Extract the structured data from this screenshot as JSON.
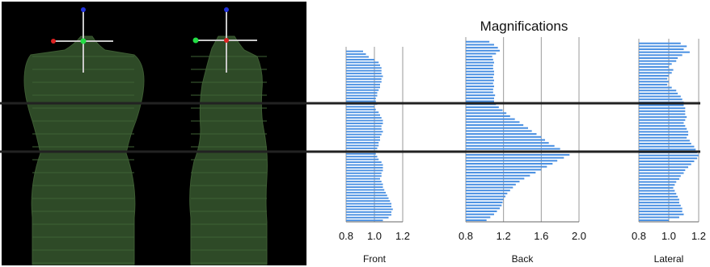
{
  "figure_title": "Magnifications",
  "chart_data": [
    {
      "type": "bar",
      "orientation": "horizontal",
      "xlabel": "Front",
      "xlim": [
        0.8,
        1.2
      ],
      "xticks": [
        0.8,
        1.0,
        1.2
      ],
      "grid": true,
      "series_color": "#4a90e2",
      "values": [
        0.92,
        0.94,
        0.96,
        1.0,
        1.03,
        1.04,
        1.05,
        1.05,
        1.05,
        1.06,
        1.05,
        1.05,
        1.04,
        1.04,
        1.03,
        1.02,
        1.02,
        1.01,
        1.01,
        1.02,
        1.0,
        1.01,
        1.03,
        1.04,
        1.05,
        1.06,
        1.06,
        1.05,
        1.05,
        1.06,
        1.05,
        1.04,
        1.04,
        1.03,
        1.03,
        1.02,
        1.02,
        1.01,
        1.02,
        1.03,
        1.05,
        1.06,
        1.06,
        1.06,
        1.05,
        1.05,
        1.04,
        1.05,
        1.06,
        1.06,
        1.07,
        1.08,
        1.09,
        1.1,
        1.11,
        1.12,
        1.12,
        1.13,
        1.12,
        1.12,
        1.1,
        1.06
      ]
    },
    {
      "type": "bar",
      "orientation": "horizontal",
      "xlabel": "Back",
      "xlim": [
        0.8,
        2.0
      ],
      "xticks": [
        0.8,
        1.2,
        1.6,
        2.0
      ],
      "grid": true,
      "series_color": "#4a90e2",
      "values": [
        1.05,
        1.1,
        1.14,
        1.16,
        1.12,
        1.08,
        1.09,
        1.1,
        1.09,
        1.09,
        1.1,
        1.1,
        1.09,
        1.1,
        1.09,
        1.1,
        1.09,
        1.09,
        1.11,
        1.1,
        1.1,
        1.12,
        1.15,
        1.19,
        1.23,
        1.27,
        1.32,
        1.37,
        1.41,
        1.46,
        1.5,
        1.55,
        1.6,
        1.64,
        1.68,
        1.74,
        1.8,
        1.86,
        1.9,
        1.84,
        1.77,
        1.72,
        1.66,
        1.6,
        1.54,
        1.48,
        1.42,
        1.37,
        1.33,
        1.3,
        1.27,
        1.24,
        1.22,
        1.2,
        1.19,
        1.18,
        1.16,
        1.13,
        1.1,
        1.06,
        1.02
      ]
    },
    {
      "type": "bar",
      "orientation": "horizontal",
      "xlabel": "Lateral",
      "xlim": [
        0.8,
        1.2
      ],
      "xticks": [
        0.8,
        1.0,
        1.2
      ],
      "grid": true,
      "series_color": "#4a90e2",
      "values": [
        1.08,
        1.12,
        1.1,
        1.14,
        1.09,
        1.06,
        1.05,
        1.02,
        1.0,
        1.03,
        1.02,
        1.0,
        0.99,
        1.0,
        0.99,
        1.02,
        1.05,
        1.06,
        1.08,
        1.09,
        1.1,
        1.1,
        1.11,
        1.11,
        1.11,
        1.12,
        1.11,
        1.1,
        1.11,
        1.12,
        1.13,
        1.13,
        1.12,
        1.14,
        1.15,
        1.17,
        1.18,
        1.19,
        1.2,
        1.19,
        1.17,
        1.15,
        1.13,
        1.11,
        1.1,
        1.08,
        1.07,
        1.05,
        1.04,
        1.03,
        1.04,
        1.05,
        1.06,
        1.07,
        1.07,
        1.08,
        1.09,
        1.09,
        1.1,
        1.07,
        1.0
      ]
    }
  ]
}
